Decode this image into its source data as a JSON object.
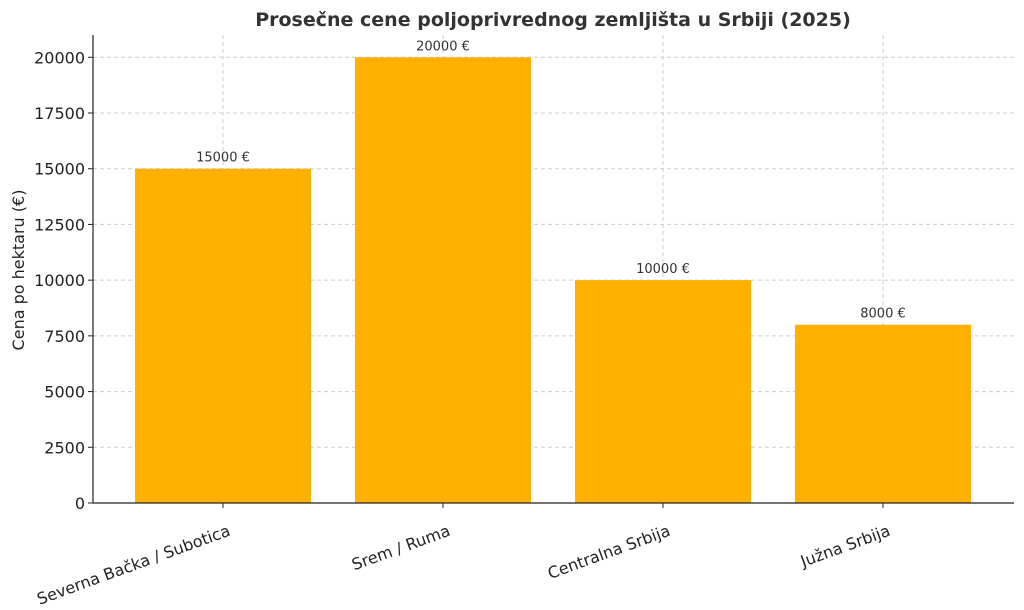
{
  "chart_data": {
    "type": "bar",
    "title": "Prosečne cene poljoprivrednog zemljišta u Srbiji (2025)",
    "xlabel": "",
    "ylabel": "Cena po hektaru (€)",
    "categories": [
      "Severna Bačka / Subotica",
      "Srem / Ruma",
      "Centralna Srbija",
      "Južna Srbija"
    ],
    "values": [
      15000,
      20000,
      10000,
      8000
    ],
    "data_labels": [
      "15000 €",
      "20000 €",
      "10000 €",
      "8000 €"
    ],
    "ylim": [
      0,
      21000
    ],
    "yticks": [
      0,
      2500,
      5000,
      7500,
      10000,
      12500,
      15000,
      17500,
      20000
    ],
    "grid": true,
    "bar_color": "#FFB000",
    "x_tick_rotation_deg": -20
  }
}
